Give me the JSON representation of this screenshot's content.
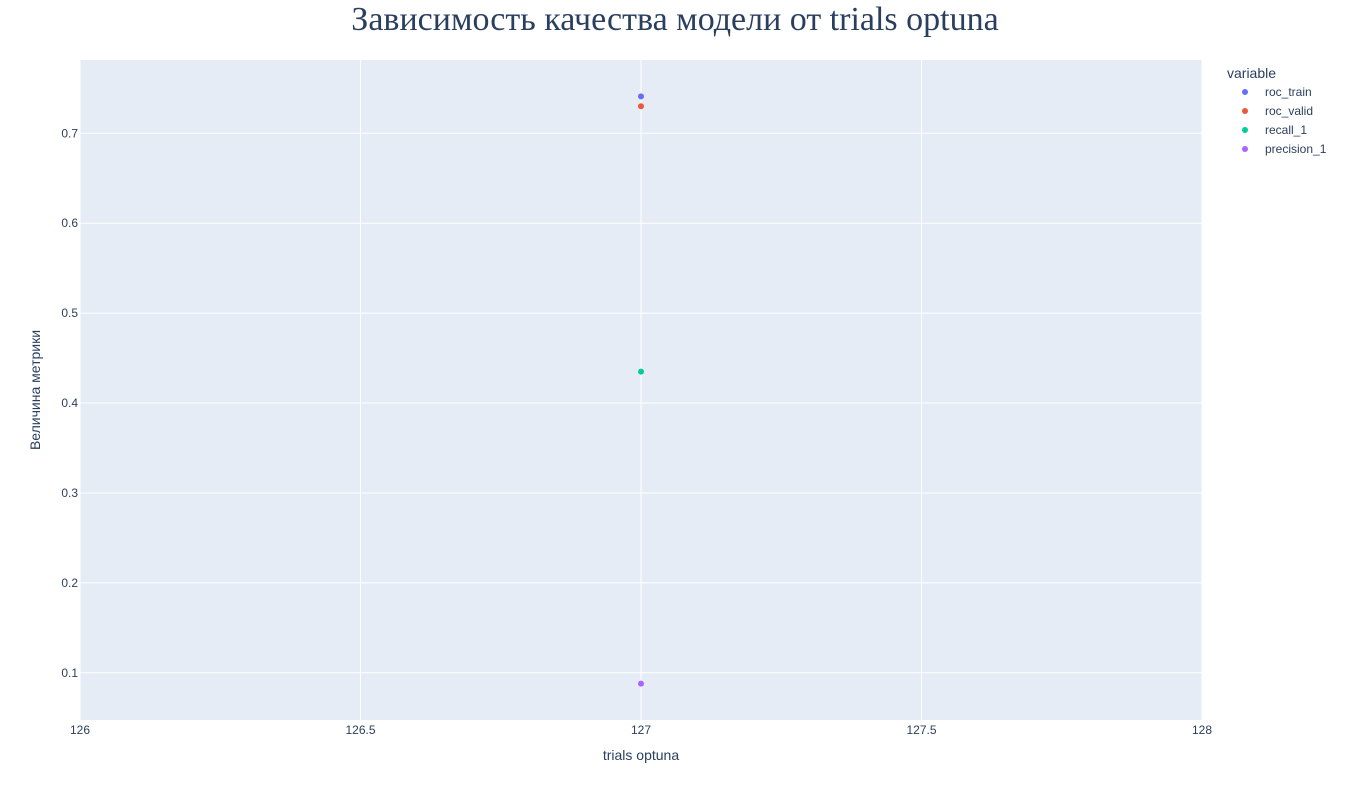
{
  "chart_data": {
    "type": "scatter",
    "title": "Зависимость качества модели от trials optuna",
    "xlabel": "trials optuna",
    "ylabel": "Величина метрики",
    "xlim": [
      126,
      128
    ],
    "ylim": [
      0.0475,
      0.7815
    ],
    "xticks": [
      126,
      126.5,
      127,
      127.5,
      128
    ],
    "xtick_labels": [
      "126",
      "126.5",
      "127",
      "127.5",
      "128"
    ],
    "yticks": [
      0.1,
      0.2,
      0.3,
      0.4,
      0.5,
      0.6,
      0.7
    ],
    "ytick_labels": [
      "0.1",
      "0.2",
      "0.3",
      "0.4",
      "0.5",
      "0.6",
      "0.7"
    ],
    "grid": true,
    "legend": {
      "title": "variable",
      "placement": "right"
    },
    "series": [
      {
        "name": "roc_train",
        "color": "#636efa",
        "x": [
          127
        ],
        "y": [
          0.741
        ]
      },
      {
        "name": "roc_valid",
        "color": "#ef553b",
        "x": [
          127
        ],
        "y": [
          0.73
        ]
      },
      {
        "name": "recall_1",
        "color": "#00cc96",
        "x": [
          127
        ],
        "y": [
          0.435
        ]
      },
      {
        "name": "precision_1",
        "color": "#ab63fa",
        "x": [
          127
        ],
        "y": [
          0.088
        ]
      }
    ],
    "colors": {
      "plot_bg": "#e5ecf6",
      "text": "#2a3f5f"
    }
  }
}
